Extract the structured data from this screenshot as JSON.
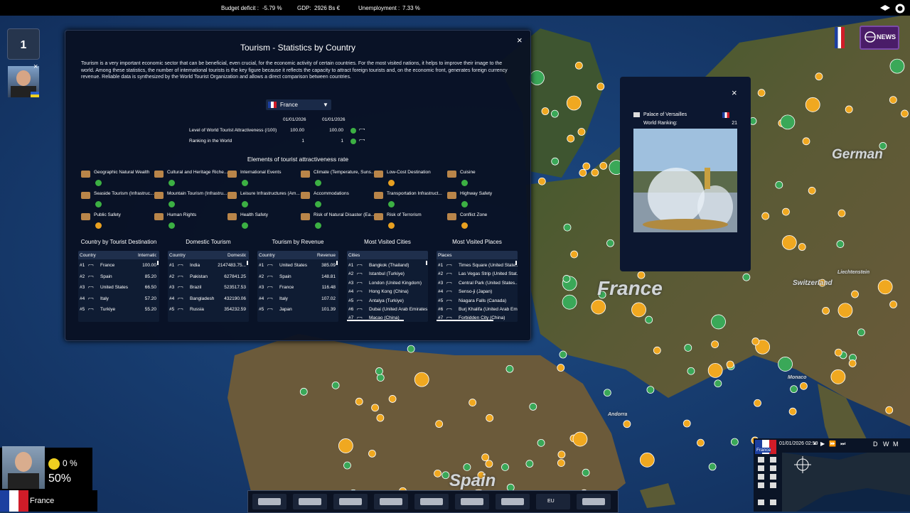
{
  "top_bar": {
    "budget_label": "Budget deficit :",
    "budget_value": "-5.79 %",
    "gdp_label": "GDP:",
    "gdp_value": "2926 Bs €",
    "unemployment_label": "Unemployment :",
    "unemployment_value": "7.33 %"
  },
  "left_badge": "1",
  "news_button": "NEWS",
  "tourism_panel": {
    "title": "Tourism - Statistics by Country",
    "description": "Tourism is a very important economic sector that can be beneficial, even crucial, for the economic activity of certain countries. For the most visited nations, it helps to improve their image to the world. Among these statistics, the number of international tourists is the key figure because it reflects the capacity to attract foreign tourists and, on the economic front, generates foreign currency revenue. Reliable data is synthesized by the World Tourist Organization and allows a direct comparison between countries.",
    "country_selector": "France",
    "dates": [
      "01/01/2026",
      "01/01/2026"
    ],
    "stats": [
      {
        "label": "Level of World Tourist Attractiveness (/100)",
        "values": [
          "100.00",
          "100.00"
        ]
      },
      {
        "label": "Ranking in the World",
        "values": [
          "1",
          "1"
        ]
      }
    ],
    "elements_title": "Elements of tourist attractiveness rate",
    "elements": [
      {
        "label": "Geographic Natural Wealth",
        "color": "#3cb043"
      },
      {
        "label": "Cultural and Heritage Riche...",
        "color": "#3cb043"
      },
      {
        "label": "International Events",
        "color": "#3cb043"
      },
      {
        "label": "Climate (Temperature, Suns...",
        "color": "#3cb043"
      },
      {
        "label": "Low-Cost Destination",
        "color": "#e8a020"
      },
      {
        "label": "Cuisine",
        "color": "#3cb043"
      },
      {
        "label": "Seaside Tourism (Infrastruc...",
        "color": "#3cb043"
      },
      {
        "label": "Mountain Tourism (Infrastru...",
        "color": "#3cb043"
      },
      {
        "label": "Leisure Infrastructures (Am...",
        "color": "#3cb043"
      },
      {
        "label": "Accommodations",
        "color": "#3cb043"
      },
      {
        "label": "Transportation Infrastruct...",
        "color": "#3cb043"
      },
      {
        "label": "Highway Safety",
        "color": "#3cb043"
      },
      {
        "label": "Public Safety",
        "color": "#e8a020"
      },
      {
        "label": "Human Rights",
        "color": "#3cb043"
      },
      {
        "label": "Health Safety",
        "color": "#3cb043"
      },
      {
        "label": "Risk of Natural Disaster (Ea...",
        "color": "#3cb043"
      },
      {
        "label": "Risk of Terrorism",
        "color": "#e8a020"
      },
      {
        "label": "Conflict Zone",
        "color": "#e8a020"
      }
    ],
    "tables": [
      {
        "title": "Country by Tourist Destination",
        "columns": [
          "Country",
          "Internatio"
        ],
        "rows": [
          [
            "#1",
            "France",
            "100.00"
          ],
          [
            "#2",
            "Spain",
            "85.20"
          ],
          [
            "#3",
            "United States",
            "66.50"
          ],
          [
            "#4",
            "Italy",
            "57.20"
          ],
          [
            "#5",
            "Turkiye",
            "55.20"
          ]
        ]
      },
      {
        "title": "Domestic Tourism",
        "columns": [
          "Country",
          "Domestic T"
        ],
        "rows": [
          [
            "#1",
            "India",
            "2147483.75..."
          ],
          [
            "#2",
            "Pakistan",
            "627841.25"
          ],
          [
            "#3",
            "Brazil",
            "523517.53"
          ],
          [
            "#4",
            "Bangladesh",
            "432190.06"
          ],
          [
            "#5",
            "Russia",
            "354232.59"
          ]
        ]
      },
      {
        "title": "Tourism by Revenue",
        "columns": [
          "Country",
          "Revenue (I"
        ],
        "rows": [
          [
            "#1",
            "United States",
            "385.09"
          ],
          [
            "#2",
            "Spain",
            "148.81"
          ],
          [
            "#3",
            "France",
            "116.48"
          ],
          [
            "#4",
            "Italy",
            "107.02"
          ],
          [
            "#5",
            "Japan",
            "101.39"
          ]
        ]
      },
      {
        "title": "Most Visited Cities",
        "columns": [
          "Cities"
        ],
        "rows": [
          [
            "#1",
            "Bangkok (Thailand)"
          ],
          [
            "#2",
            "Istanbul (Turkiye)"
          ],
          [
            "#3",
            "London (United Kingdom)"
          ],
          [
            "#4",
            "Hong Kong (China)"
          ],
          [
            "#5",
            "Antalya (Turkiye)"
          ],
          [
            "#6",
            "Dubai (United Arab Emirates..."
          ],
          [
            "#7",
            "Macao (China)"
          ]
        ]
      },
      {
        "title": "Most Visited Places",
        "columns": [
          "Places"
        ],
        "rows": [
          [
            "#1",
            "Times Square (United State..."
          ],
          [
            "#2",
            "Las Vegas Strip (United Stat..."
          ],
          [
            "#3",
            "Central Park (United States..."
          ],
          [
            "#4",
            "Senso-ji (Japan)"
          ],
          [
            "#5",
            "Niagara Falls (Canada)"
          ],
          [
            "#6",
            "Burj Khalifa (United Arab Em..."
          ],
          [
            "#7",
            "Forbidden City (China)"
          ]
        ]
      }
    ]
  },
  "place_popup": {
    "name": "Palace of Versailles",
    "ranking_label": "World Ranking:",
    "ranking_value": "21"
  },
  "map_labels": [
    "France",
    "German",
    "Switzerland",
    "Liechtenstein",
    "Monaco",
    "Andorra",
    "Spain"
  ],
  "leader_panel": {
    "approval": "0 %",
    "popularity": "50%",
    "country": "France"
  },
  "bottom_bar": {
    "eu_button": "EU"
  },
  "minimap": {
    "country": "France",
    "datetime": "01/01/2026 02:59",
    "speeds": [
      "D",
      "W",
      "M"
    ]
  }
}
